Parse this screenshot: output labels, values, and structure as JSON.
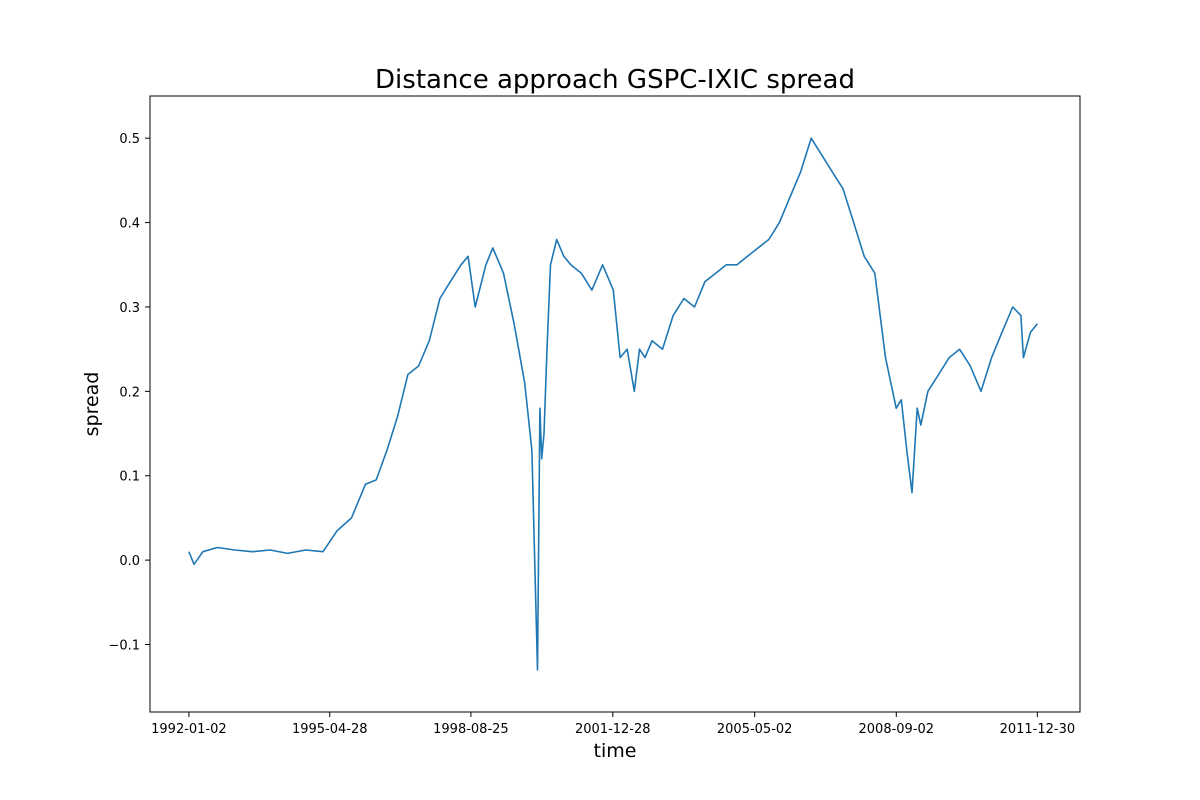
{
  "chart_data": {
    "type": "line",
    "title": "Distance approach GSPC-IXIC spread",
    "xlabel": "time",
    "ylabel": "spread",
    "x_ticks": [
      "1992-01-02",
      "1995-04-28",
      "1998-08-25",
      "2001-12-28",
      "2005-05-02",
      "2008-09-02",
      "2011-12-30"
    ],
    "y_ticks": [
      -0.1,
      0.0,
      0.1,
      0.2,
      0.3,
      0.4,
      0.5
    ],
    "y_tick_labels": [
      "−0.1",
      "0.0",
      "0.1",
      "0.2",
      "0.3",
      "0.4",
      "0.5"
    ],
    "xlim": [
      "1991-02-01",
      "2012-12-31"
    ],
    "ylim": [
      -0.18,
      0.55
    ],
    "grid": false,
    "color": "#1f77b4",
    "series": [
      {
        "x": [
          "1992-01-02",
          "1992-02-15",
          "1992-05-01",
          "1992-09-01",
          "1993-02-01",
          "1993-07-01",
          "1993-12-01",
          "1994-05-01",
          "1994-10-01",
          "1995-03-01",
          "1995-07-01",
          "1995-11-01",
          "1996-03-01",
          "1996-06-01",
          "1996-09-01",
          "1996-12-01",
          "1997-03-01",
          "1997-06-01",
          "1997-09-01",
          "1997-12-01",
          "1998-03-01",
          "1998-06-01",
          "1998-08-01",
          "1998-10-01",
          "1999-01-01",
          "1999-03-01",
          "1999-06-01",
          "1999-09-01",
          "1999-12-01",
          "2000-02-01",
          "2000-03-20",
          "2000-04-10",
          "2000-04-25",
          "2000-05-15",
          "2000-06-10",
          "2000-07-10",
          "2000-09-01",
          "2000-11-01",
          "2001-01-01",
          "2001-04-01",
          "2001-07-01",
          "2001-10-01",
          "2002-01-01",
          "2002-03-01",
          "2002-05-01",
          "2002-07-01",
          "2002-08-15",
          "2002-10-01",
          "2002-12-01",
          "2003-03-01",
          "2003-06-01",
          "2003-09-01",
          "2003-12-01",
          "2004-03-01",
          "2004-06-01",
          "2004-09-01",
          "2004-12-01",
          "2005-03-01",
          "2005-06-01",
          "2005-09-01",
          "2005-12-01",
          "2006-03-01",
          "2006-06-01",
          "2006-09-01",
          "2006-12-01",
          "2007-03-01",
          "2007-06-01",
          "2007-09-01",
          "2007-12-01",
          "2008-03-01",
          "2008-06-01",
          "2008-09-01",
          "2008-10-15",
          "2008-12-01",
          "2009-01-15",
          "2009-03-01",
          "2009-04-01",
          "2009-06-01",
          "2009-09-01",
          "2009-12-01",
          "2010-03-01",
          "2010-06-01",
          "2010-09-01",
          "2010-12-01",
          "2011-03-01",
          "2011-06-01",
          "2011-08-10",
          "2011-09-01",
          "2011-11-01",
          "2011-12-30"
        ],
        "y": [
          0.01,
          -0.005,
          0.01,
          0.015,
          0.012,
          0.01,
          0.012,
          0.008,
          0.012,
          0.01,
          0.035,
          0.05,
          0.09,
          0.095,
          0.13,
          0.17,
          0.22,
          0.23,
          0.26,
          0.31,
          0.33,
          0.35,
          0.36,
          0.3,
          0.35,
          0.37,
          0.34,
          0.28,
          0.21,
          0.13,
          -0.13,
          0.18,
          0.12,
          0.15,
          0.25,
          0.35,
          0.38,
          0.36,
          0.35,
          0.34,
          0.32,
          0.35,
          0.32,
          0.24,
          0.25,
          0.2,
          0.25,
          0.24,
          0.26,
          0.25,
          0.29,
          0.31,
          0.3,
          0.33,
          0.34,
          0.35,
          0.35,
          0.36,
          0.37,
          0.38,
          0.4,
          0.43,
          0.46,
          0.5,
          0.48,
          0.46,
          0.44,
          0.4,
          0.36,
          0.34,
          0.24,
          0.18,
          0.19,
          0.13,
          0.08,
          0.18,
          0.16,
          0.2,
          0.22,
          0.24,
          0.25,
          0.23,
          0.2,
          0.24,
          0.27,
          0.3,
          0.29,
          0.24,
          0.27,
          0.28
        ]
      }
    ]
  }
}
